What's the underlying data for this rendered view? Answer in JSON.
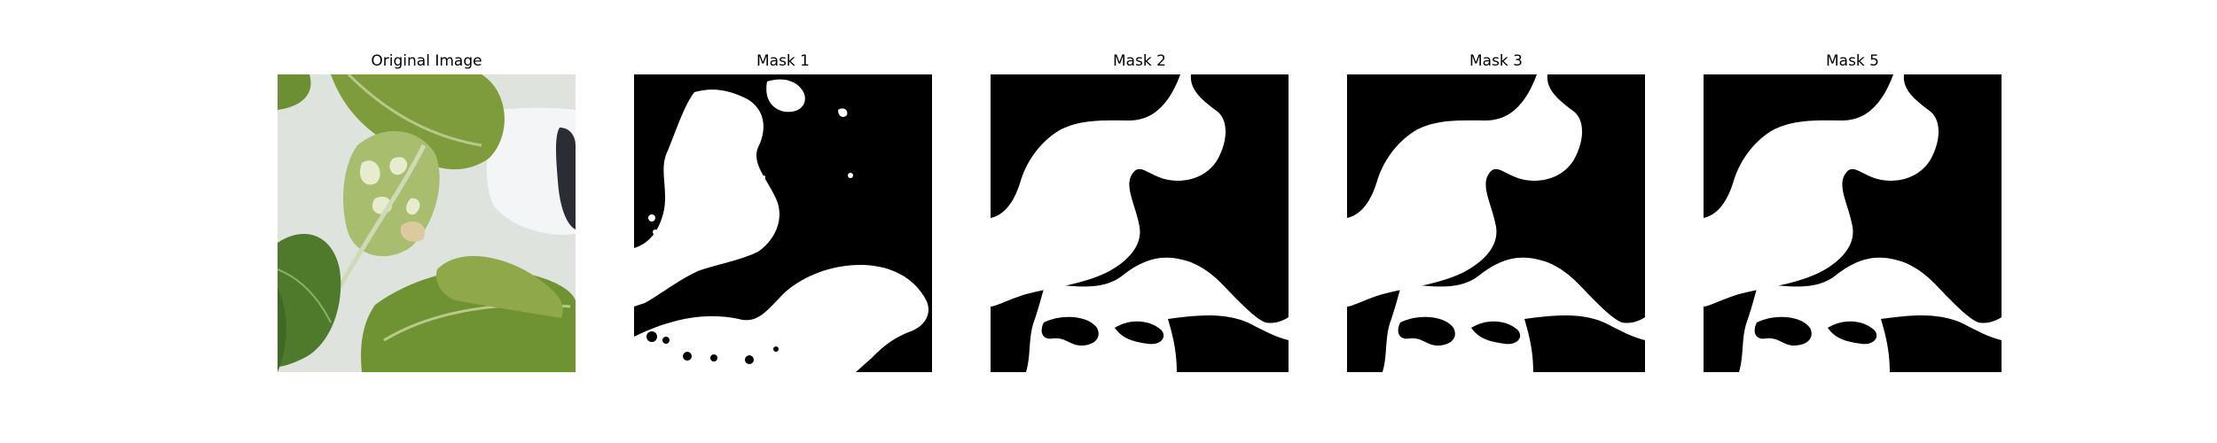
{
  "panels": [
    {
      "title": "Original Image",
      "kind": "photo"
    },
    {
      "title": "Mask 1",
      "kind": "mask",
      "variant": "noisy"
    },
    {
      "title": "Mask 2",
      "kind": "mask",
      "variant": "smooth"
    },
    {
      "title": "Mask 3",
      "kind": "mask",
      "variant": "smooth"
    },
    {
      "title": "Mask 5",
      "kind": "mask",
      "variant": "smooth"
    }
  ],
  "colors": {
    "mask_foreground": "#ffffff",
    "mask_background": "#000000",
    "photo_background": "#dfe3dd",
    "leaf_dark": "#4f7a2c",
    "leaf_mid": "#7f9c3c",
    "leaf_light": "#b8c98a",
    "leaf_pale": "#e6eccd",
    "stem": "#cfd9b3",
    "device": "#ffffff",
    "device_dark": "#2a2d33"
  }
}
